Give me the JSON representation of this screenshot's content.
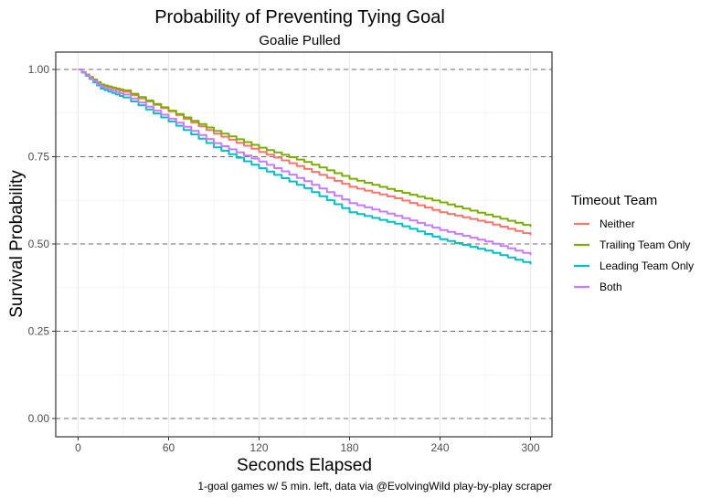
{
  "chart_data": {
    "type": "line",
    "title": "Probability of Preventing Tying Goal",
    "subtitle": "Goalie Pulled",
    "xlabel": "Seconds Elapsed",
    "ylabel": "Survival Probability",
    "caption": "1-goal games w/ 5 min. left, data via @EvolvingWild play-by-play scraper",
    "xlim": [
      0,
      300
    ],
    "ylim": [
      0,
      1
    ],
    "x_ticks": [
      0,
      60,
      120,
      180,
      240,
      300
    ],
    "x_tick_labels": [
      "0",
      "60",
      "120",
      "180",
      "240",
      "300"
    ],
    "y_ticks": [
      0,
      0.25,
      0.5,
      0.75,
      1.0
    ],
    "y_tick_labels": [
      "0.00",
      "0.25",
      "0.50",
      "0.75",
      "1.00"
    ],
    "y_ref_lines": [
      0,
      0.25,
      0.5,
      0.75,
      1.0
    ],
    "grid": true,
    "legend": {
      "title": "Timeout Team",
      "position": "right"
    },
    "x": [
      0,
      15,
      30,
      60,
      90,
      120,
      150,
      180,
      210,
      240,
      270,
      300
    ],
    "series": [
      {
        "name": "Neither",
        "color": "#F8766D",
        "values": [
          1.0,
          0.955,
          0.936,
          0.88,
          0.816,
          0.764,
          0.715,
          0.664,
          0.631,
          0.591,
          0.562,
          0.525
        ]
      },
      {
        "name": "Trailing Team Only",
        "color": "#7CAE00",
        "values": [
          1.0,
          0.957,
          0.94,
          0.882,
          0.824,
          0.776,
          0.735,
          0.687,
          0.652,
          0.619,
          0.584,
          0.549
        ]
      },
      {
        "name": "Leading Team Only",
        "color": "#00BFC4",
        "values": [
          1.0,
          0.945,
          0.92,
          0.851,
          0.777,
          0.717,
          0.66,
          0.591,
          0.558,
          0.514,
          0.481,
          0.442
        ]
      },
      {
        "name": "Both",
        "color": "#C77CFF",
        "values": [
          1.0,
          0.95,
          0.928,
          0.859,
          0.789,
          0.736,
          0.68,
          0.617,
          0.581,
          0.54,
          0.507,
          0.468
        ]
      }
    ]
  }
}
